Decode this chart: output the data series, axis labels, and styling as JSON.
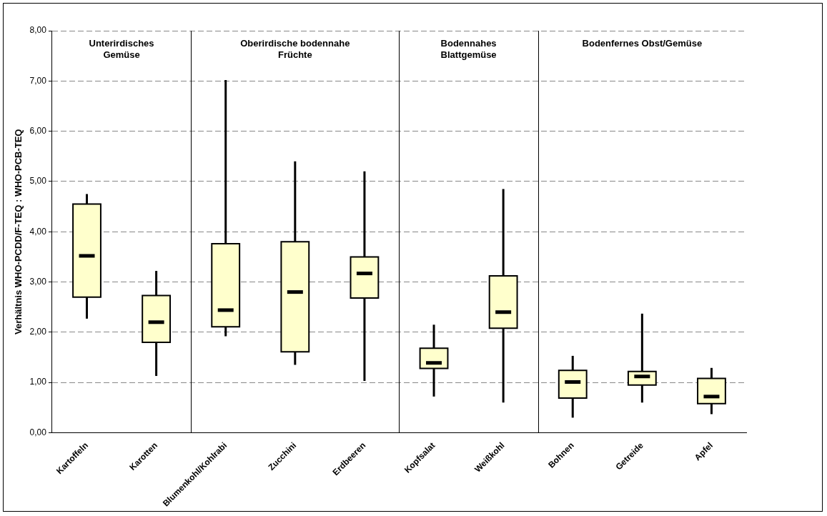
{
  "chart_data": {
    "type": "box",
    "ylabel": "Verhältnis WHO-PCDD/F-TEQ : WHO-PCB-TEQ",
    "categories": [
      "Kartoffeln",
      "Karotten",
      "Blumenkohl/Kohlrabi",
      "Zucchini",
      "Erdbeeren",
      "Kopfsalat",
      "Weißkohl",
      "Bohnen",
      "Getreide",
      "Apfel"
    ],
    "color": "#ffffcc",
    "boxes": [
      {
        "low": 2.27,
        "q1": 2.7,
        "median": 3.52,
        "q3": 4.55,
        "high": 4.75
      },
      {
        "low": 1.13,
        "q1": 1.8,
        "median": 2.2,
        "q3": 2.73,
        "high": 3.22
      },
      {
        "low": 1.92,
        "q1": 2.11,
        "median": 2.44,
        "q3": 3.76,
        "high": 7.02
      },
      {
        "low": 1.35,
        "q1": 1.61,
        "median": 2.8,
        "q3": 3.8,
        "high": 5.4
      },
      {
        "low": 1.03,
        "q1": 2.68,
        "median": 3.17,
        "q3": 3.5,
        "high": 5.2
      },
      {
        "low": 0.72,
        "q1": 1.28,
        "median": 1.39,
        "q3": 1.68,
        "high": 2.15
      },
      {
        "low": 0.6,
        "q1": 2.08,
        "median": 2.4,
        "q3": 3.12,
        "high": 4.85
      },
      {
        "low": 0.3,
        "q1": 0.69,
        "median": 1.01,
        "q3": 1.24,
        "high": 1.53
      },
      {
        "low": 0.6,
        "q1": 0.95,
        "median": 1.12,
        "q3": 1.22,
        "high": 2.37
      },
      {
        "low": 0.37,
        "q1": 0.58,
        "median": 0.72,
        "q3": 1.08,
        "high": 1.29
      }
    ],
    "ylim": [
      0,
      8
    ],
    "yticks": [
      {
        "value": 0,
        "label": "0,00"
      },
      {
        "value": 1,
        "label": "1,00"
      },
      {
        "value": 2,
        "label": "2,00"
      },
      {
        "value": 3,
        "label": "3,00"
      },
      {
        "value": 4,
        "label": "4,00"
      },
      {
        "value": 5,
        "label": "5,00"
      },
      {
        "value": 6,
        "label": "6,00"
      },
      {
        "value": 7,
        "label": "7,00"
      },
      {
        "value": 8,
        "label": "8,00"
      }
    ],
    "grid": "y",
    "legend": false,
    "annotations": [
      "Unterirdisches Gemüse",
      "Oberirdische bodennahe Früchte",
      "Bodennahes Blattgemüse",
      "Bodenfernes Obst/Gemüse"
    ]
  }
}
